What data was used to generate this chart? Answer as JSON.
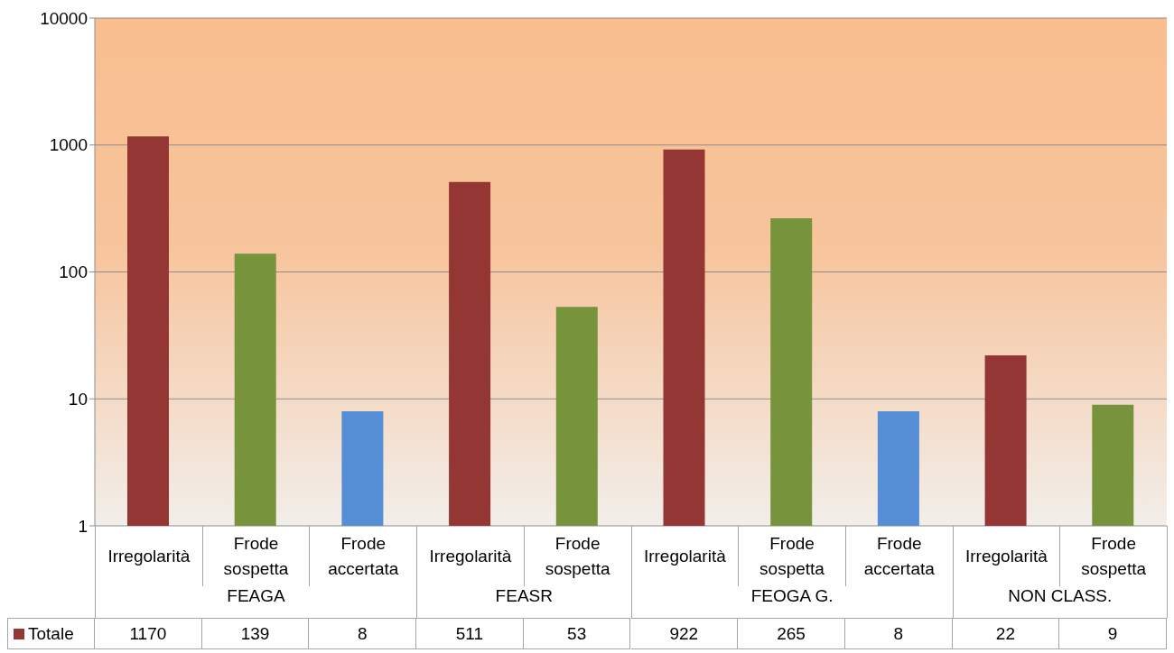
{
  "chart_data": {
    "type": "bar",
    "categories": [
      "Irregolarità",
      "Frode sospetta",
      "Frode accertata",
      "Irregolarità",
      "Frode sospetta",
      "Irregolarità",
      "Frode sospetta",
      "Frode accertata",
      "Irregolarità",
      "Frode sospetta"
    ],
    "annotations": [
      "FEAGA",
      "FEASR",
      "FEOGA G.",
      "NON CLASS."
    ],
    "series": [
      {
        "name": "Totale",
        "color": "#943634",
        "colors": [
          "#943634",
          "#77933c",
          "#558ed5",
          "#943634",
          "#77933c",
          "#943634",
          "#77933c",
          "#558ed5",
          "#943634",
          "#77933c"
        ],
        "values": [
          1170,
          139,
          8,
          511,
          53,
          922,
          265,
          8,
          22,
          9
        ]
      }
    ],
    "log": true,
    "ylim": [
      1,
      10000
    ],
    "yticks": [
      1,
      10,
      100,
      1000,
      10000
    ],
    "grid": "y",
    "data_labels": true,
    "legend": "bottom"
  }
}
